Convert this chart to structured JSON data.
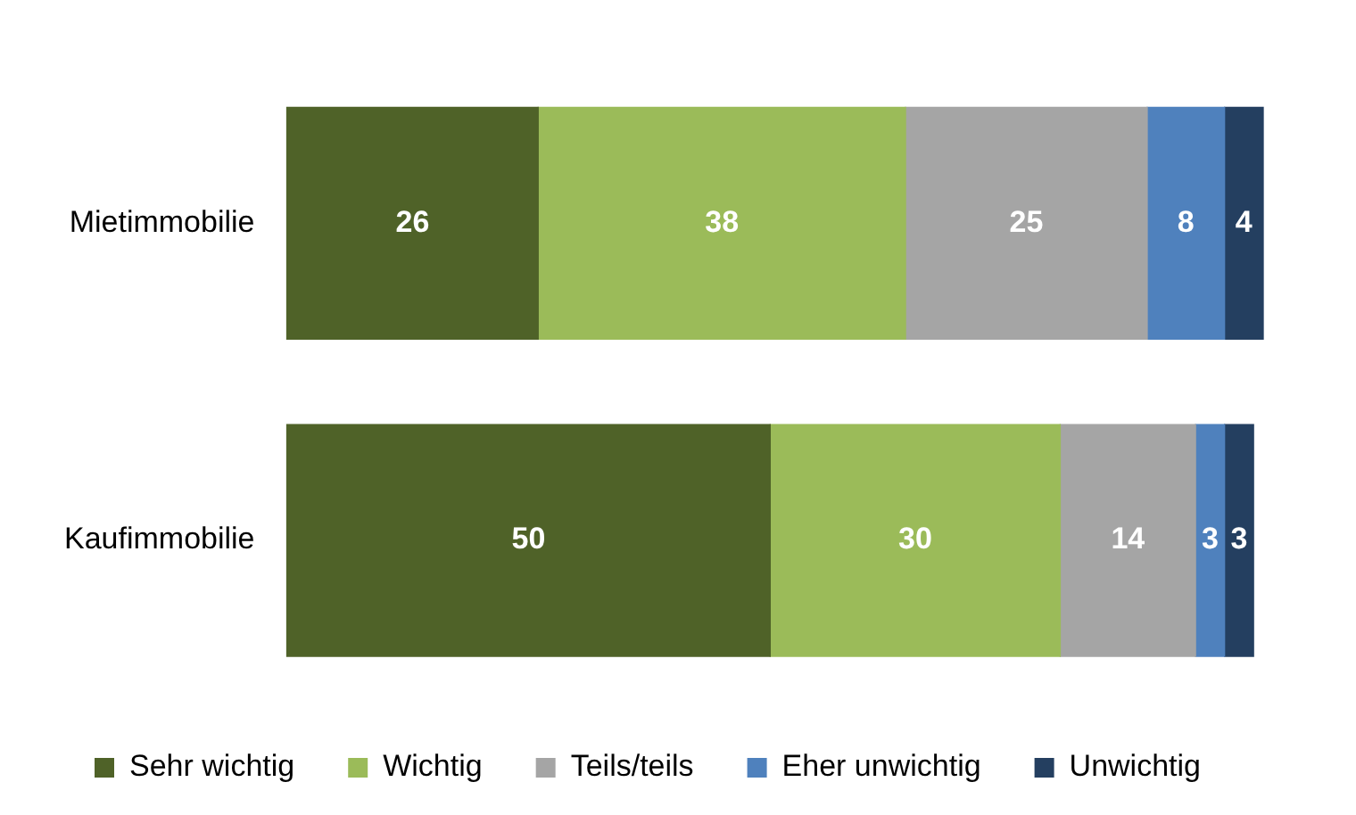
{
  "chart_data": {
    "type": "bar",
    "orientation": "horizontal",
    "stacked": true,
    "categories": [
      "Mietimmobilie",
      "Kaufimmobilie"
    ],
    "series": [
      {
        "name": "Sehr wichtig",
        "color": "#4f6228",
        "values": [
          26,
          50
        ]
      },
      {
        "name": "Wichtig",
        "color": "#9bbb59",
        "values": [
          38,
          30
        ]
      },
      {
        "name": "Teils/teils",
        "color": "#a5a5a5",
        "values": [
          25,
          14
        ]
      },
      {
        "name": "Eher unwichtig",
        "color": "#4f81bd",
        "values": [
          8,
          3
        ]
      },
      {
        "name": "Unwichtig",
        "color": "#243f60",
        "values": [
          4,
          3
        ]
      }
    ],
    "xlim": [
      0,
      101
    ],
    "data_labels": true,
    "legend": "bottom",
    "tick_labels": "y"
  }
}
